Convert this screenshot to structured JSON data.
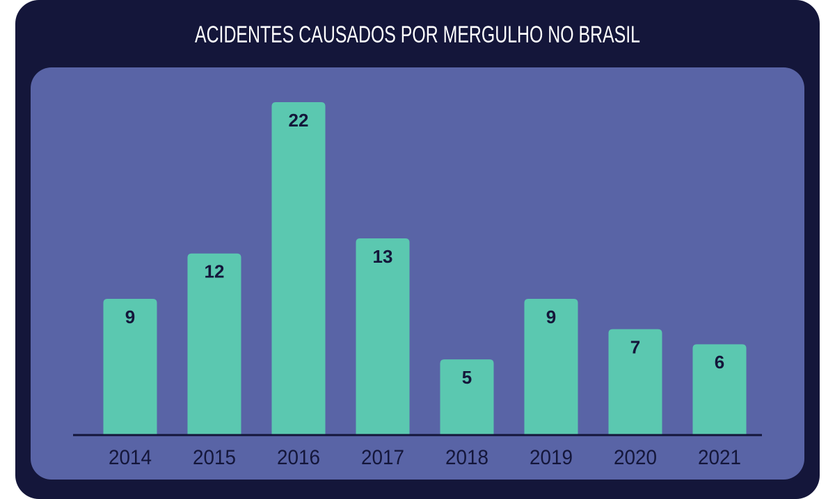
{
  "chart_data": {
    "type": "bar",
    "title": "ACIDENTES CAUSADOS POR MERGULHO NO BRASIL",
    "categories": [
      "2014",
      "2015",
      "2016",
      "2017",
      "2018",
      "2019",
      "2020",
      "2021"
    ],
    "values": [
      9,
      12,
      22,
      13,
      5,
      9,
      7,
      6
    ],
    "color": "#5bc8b0"
  }
}
